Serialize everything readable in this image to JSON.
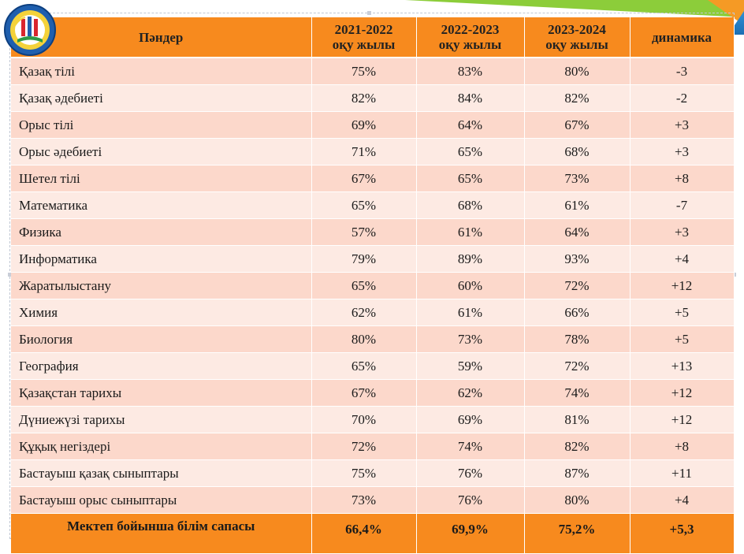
{
  "header": {
    "subject": "Пәндер",
    "years": [
      {
        "line1": "2021-2022",
        "line2": "оқу жылы"
      },
      {
        "line1": "2022-2023",
        "line2": "оқу жылы"
      },
      {
        "line1": "2023-2024",
        "line2": "оқу жылы"
      }
    ],
    "dynamics": "динамика"
  },
  "rows": [
    {
      "subject": "Қазақ тілі",
      "y1": "75%",
      "y2": "83%",
      "y3": "80%",
      "dyn": "-3"
    },
    {
      "subject": "Қазақ әдебиеті",
      "y1": "82%",
      "y2": "84%",
      "y3": "82%",
      "dyn": "-2"
    },
    {
      "subject": "Орыс тілі",
      "y1": "69%",
      "y2": "64%",
      "y3": "67%",
      "dyn": "+3"
    },
    {
      "subject": "Орыс әдебиеті",
      "y1": "71%",
      "y2": "65%",
      "y3": "68%",
      "dyn": "+3"
    },
    {
      "subject": "Шетел тілі",
      "y1": "67%",
      "y2": "65%",
      "y3": "73%",
      "dyn": "+8"
    },
    {
      "subject": "Математика",
      "y1": "65%",
      "y2": "68%",
      "y3": "61%",
      "dyn": "-7"
    },
    {
      "subject": "Физика",
      "y1": "57%",
      "y2": "61%",
      "y3": "64%",
      "dyn": "+3"
    },
    {
      "subject": "Информатика",
      "y1": "79%",
      "y2": "89%",
      "y3": "93%",
      "dyn": "+4"
    },
    {
      "subject": "Жаратылыстану",
      "y1": "65%",
      "y2": "60%",
      "y3": "72%",
      "dyn": "+12"
    },
    {
      "subject": "Химия",
      "y1": "62%",
      "y2": "61%",
      "y3": "66%",
      "dyn": "+5"
    },
    {
      "subject": "Биология",
      "y1": "80%",
      "y2": "73%",
      "y3": "78%",
      "dyn": "+5"
    },
    {
      "subject": "География",
      "y1": "65%",
      "y2": "59%",
      "y3": "72%",
      "dyn": "+13"
    },
    {
      "subject": "Қазақстан тарихы",
      "y1": "67%",
      "y2": "62%",
      "y3": "74%",
      "dyn": "+12"
    },
    {
      "subject": "Дүниежүзі тарихы",
      "y1": "70%",
      "y2": "69%",
      "y3": "81%",
      "dyn": "+12"
    },
    {
      "subject": "Құқық негіздері",
      "y1": "72%",
      "y2": "74%",
      "y3": "82%",
      "dyn": "+8"
    },
    {
      "subject": "Бастауыш қазақ сыныптары",
      "y1": "75%",
      "y2": "76%",
      "y3": "87%",
      "dyn": "+11"
    },
    {
      "subject": "Бастауыш орыс сыныптары",
      "y1": "73%",
      "y2": "76%",
      "y3": "80%",
      "dyn": "+4"
    }
  ],
  "footer": {
    "label": "Мектеп бойынша білім сапасы",
    "y1": "66,4%",
    "y2": "69,9%",
    "y3": "75,2%",
    "dyn": "+5,3"
  },
  "colors": {
    "header": "#f78a1e",
    "row_odd": "#fcd8cb",
    "row_even": "#fdeae3"
  },
  "logo": {
    "icon": "school-emblem-icon"
  }
}
